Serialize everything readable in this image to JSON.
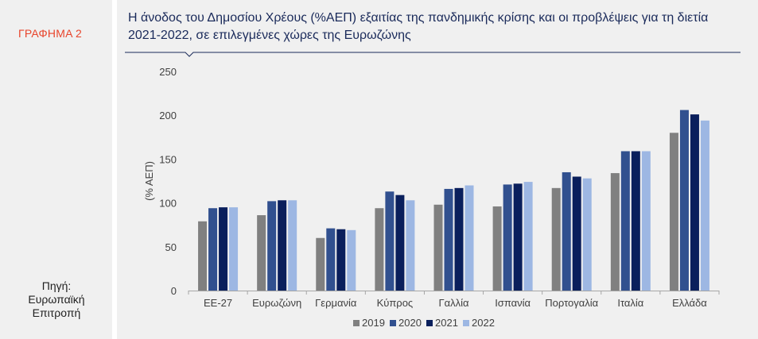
{
  "figure_label": "ΓΡΑΦΗΜΑ 2",
  "source_label": "Πηγή:",
  "source_name": "Ευρωπαϊκή Επιτροπή",
  "title_line1": "Η άνοδος του Δημοσίου Χρέους (%ΑΕΠ) εξαιτίας της πανδημικής κρίσης και οι προβλέψεις για τη διετία",
  "title_line2": "2021-2022, σε επιλεγμένες χώρες της Ευρωζώνης",
  "chart_data": {
    "type": "bar",
    "title": "Η άνοδος του Δημοσίου Χρέους (%ΑΕΠ) εξαιτίας της πανδημικής κρίσης και οι προβλέψεις για τη διετία 2021-2022, σε επιλεγμένες χώρες της Ευρωζώνης",
    "xlabel": "",
    "ylabel": "(% ΑΕΠ)",
    "ylim": [
      0,
      250
    ],
    "yticks": [
      0,
      50,
      100,
      150,
      200,
      250
    ],
    "grid": false,
    "legend_position": "bottom",
    "categories": [
      "ΕΕ-27",
      "Ευρωζώνη",
      "Γερμανία",
      "Κύπρος",
      "Γαλλία",
      "Ισπανία",
      "Πορτογαλία",
      "Ιταλία",
      "Ελλάδα"
    ],
    "series": [
      {
        "name": "2019",
        "color": "#808080",
        "values": [
          79,
          86,
          60,
          94,
          98,
          96,
          117,
          134,
          180
        ]
      },
      {
        "name": "2020",
        "color": "#31508f",
        "values": [
          94,
          102,
          71,
          113,
          116,
          121,
          135,
          159,
          206
        ]
      },
      {
        "name": "2021",
        "color": "#0a1f5c",
        "values": [
          95,
          103,
          70,
          109,
          117,
          122,
          130,
          159,
          201
        ]
      },
      {
        "name": "2022",
        "color": "#9db7e3",
        "values": [
          95,
          103,
          69,
          103,
          120,
          124,
          128,
          159,
          194
        ]
      }
    ]
  }
}
